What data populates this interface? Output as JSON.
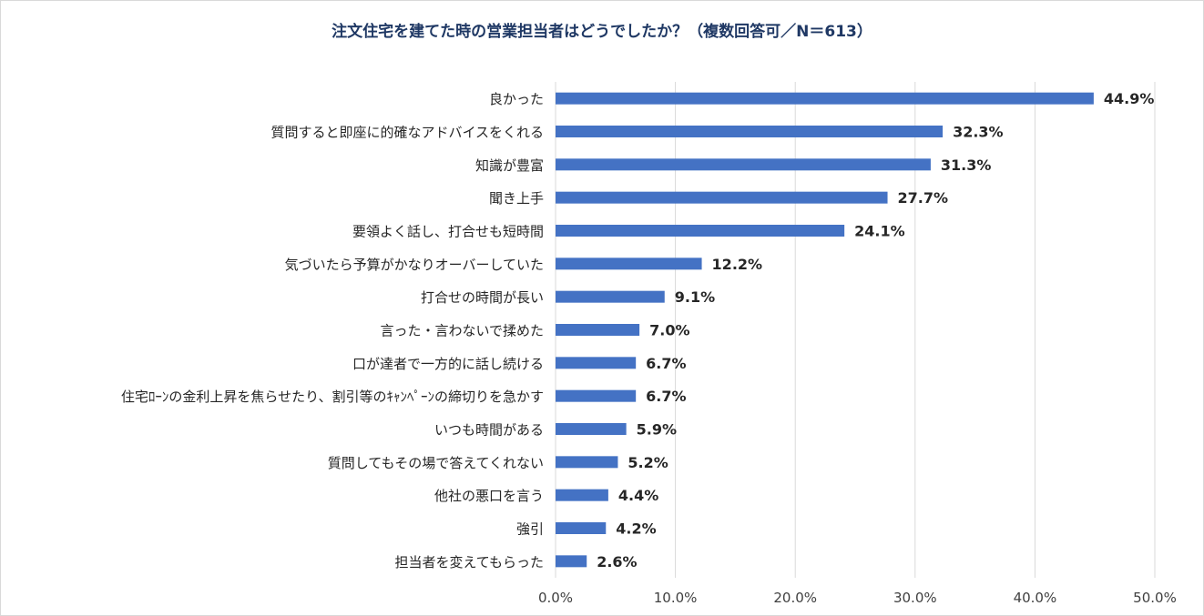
{
  "chart_data": {
    "type": "bar",
    "orientation": "horizontal",
    "title": "注文住宅を建てた時の営業担当者はどうでしたか？（複数回答可／N＝613）",
    "categories": [
      "良かった",
      "質問すると即座に的確なアドバイスをくれる",
      "知識が豊富",
      "聞き上手",
      "要領よく話し、打合せも短時間",
      "気づいたら予算がかなりオーバーしていた",
      "打合せの時間が長い",
      "言った・言わないで揉めた",
      "口が達者で一方的に話し続ける",
      "住宅ﾛｰﾝの金利上昇を焦らせたり、割引等のｷｬﾝﾍﾟｰﾝの締切りを急かす",
      "いつも時間がある",
      "質問してもその場で答えてくれない",
      "他社の悪口を言う",
      "強引",
      "担当者を変えてもらった"
    ],
    "values": [
      44.9,
      32.3,
      31.3,
      27.7,
      24.1,
      12.2,
      9.1,
      7.0,
      6.7,
      6.7,
      5.9,
      5.2,
      4.4,
      4.2,
      2.6
    ],
    "value_labels": [
      "44.9%",
      "32.3%",
      "31.3%",
      "27.7%",
      "24.1%",
      "12.2%",
      "9.1%",
      "7.0%",
      "6.7%",
      "6.7%",
      "5.9%",
      "5.2%",
      "4.4%",
      "4.2%",
      "2.6%"
    ],
    "xlim": [
      0,
      50
    ],
    "xticks": [
      0,
      10,
      20,
      30,
      40,
      50
    ],
    "xtick_labels": [
      "0.0%",
      "10.0%",
      "20.0%",
      "30.0%",
      "40.0%",
      "50.0%"
    ],
    "xlabel": "",
    "ylabel": "",
    "grid": "vertical",
    "legend": "none",
    "bar_color": "#4472c4",
    "grid_color": "#d9d9d9"
  }
}
